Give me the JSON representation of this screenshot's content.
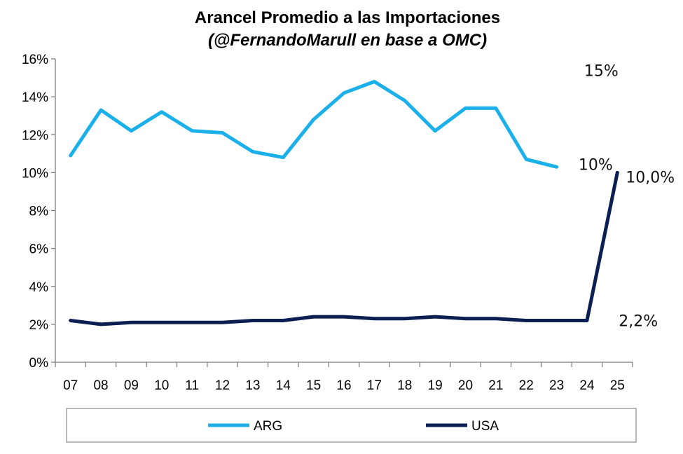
{
  "chart_data": {
    "type": "line",
    "title": "Arancel Promedio a las Importaciones",
    "subtitle": "(@FernandoMarull en base a OMC)",
    "xlabel": "",
    "ylabel": "",
    "categories": [
      "07",
      "08",
      "09",
      "10",
      "11",
      "12",
      "13",
      "14",
      "15",
      "16",
      "17",
      "18",
      "19",
      "20",
      "21",
      "22",
      "23",
      "24",
      "25"
    ],
    "yticks": [
      "0%",
      "2%",
      "4%",
      "6%",
      "8%",
      "10%",
      "12%",
      "14%",
      "16%"
    ],
    "ylim": [
      0,
      16
    ],
    "grid": false,
    "legend_position": "bottom",
    "series": [
      {
        "name": "ARG",
        "color": "#1bb0ea",
        "values": [
          10.9,
          13.3,
          12.2,
          13.2,
          12.2,
          12.1,
          11.1,
          10.8,
          12.8,
          14.2,
          14.8,
          13.8,
          12.2,
          13.4,
          13.4,
          10.7,
          10.3,
          null,
          null
        ]
      },
      {
        "name": "USA",
        "color": "#0b1f52",
        "values": [
          2.2,
          2.0,
          2.1,
          2.1,
          2.1,
          2.1,
          2.2,
          2.2,
          2.4,
          2.4,
          2.3,
          2.3,
          2.4,
          2.3,
          2.3,
          2.2,
          2.2,
          2.2,
          10.0
        ]
      }
    ],
    "annotations": [
      {
        "text": "15%",
        "series": 0,
        "index": 17,
        "y": 14.8
      },
      {
        "text": "10%",
        "series": 0,
        "index": 17,
        "y": 10.3
      },
      {
        "text": "10,0%",
        "series": 1,
        "index": 18,
        "y": 10.0
      },
      {
        "text": "2,2%",
        "series": 1,
        "index": 18,
        "y": 2.2
      }
    ]
  }
}
